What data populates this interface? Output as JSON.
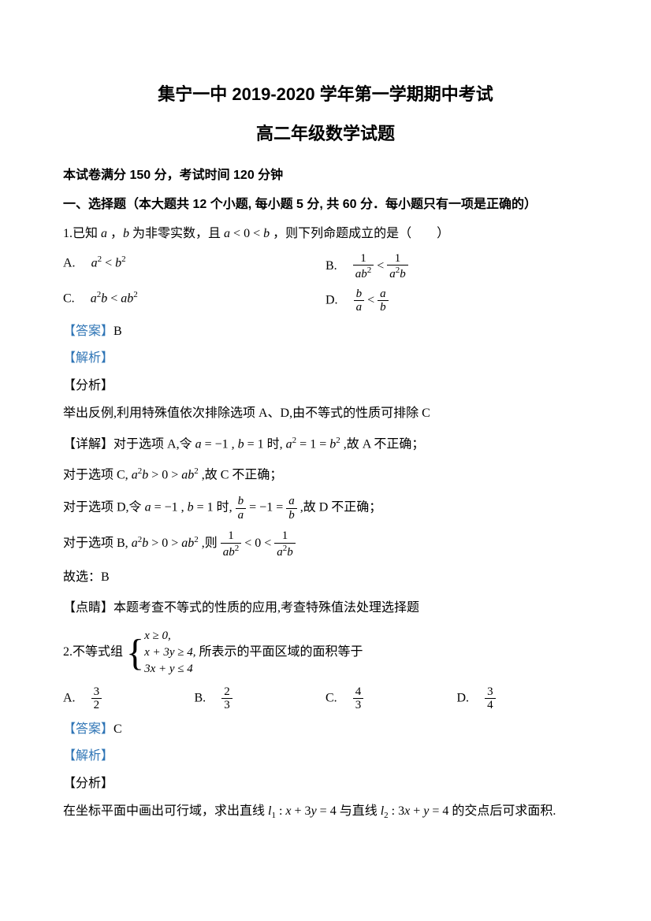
{
  "title_main": "集宁一中 2019-2020 学年第一学期期中考试",
  "title_sub": "高二年级数学试题",
  "exam_info": "本试卷满分 150 分，考试时间 120 分钟",
  "section1": "一、选择题（本大题共 12 个小题, 每小题 5 分, 共 60 分．每小题只有一项是正确的）",
  "q1": {
    "stem_prefix": "1.已知",
    "stem_mid": "为非零实数，且",
    "stem_suffix": "，则下列命题成立的是（　　）",
    "optA_prefix": "A.　",
    "optB_prefix": "B.　",
    "optC_prefix": "C.　",
    "optD_prefix": "D.　",
    "answer_label": "【答案】",
    "answer": "B",
    "analysis_label": "【解析】",
    "fenxi_label": "【分析】",
    "fenxi_text": "举出反例,利用特殊值依次排除选项 A、D,由不等式的性质可排除 C",
    "detail_label": "【详解】",
    "detailA_1": "对于选项 A,令",
    "detailA_2": "时,",
    "detailA_3": ",故 A 不正确；",
    "detailC_1": "对于选项 C,",
    "detailC_2": ",故 C 不正确；",
    "detailD_1": "对于选项 D,令",
    "detailD_2": "时,",
    "detailD_3": ",故 D 不正确；",
    "detailB_1": "对于选项 B,",
    "detailB_2": ",则",
    "conclude": "故选：B",
    "dianjing_label": "【点睛】",
    "dianjing_text": "本题考查不等式的性质的应用,考查特殊值法处理选择题"
  },
  "q2": {
    "stem_prefix": "2.不等式组",
    "stem_suffix": " 所表示的平面区域的面积等于",
    "sys1": "x ≥ 0,",
    "sys2": "x + 3y ≥ 4,",
    "sys3": "3x + y ≤ 4",
    "optA": "A.　",
    "optB": "B.　",
    "optC": "C.　",
    "optD": "D.　",
    "fracA_num": "3",
    "fracA_den": "2",
    "fracB_num": "2",
    "fracB_den": "3",
    "fracC_num": "4",
    "fracC_den": "3",
    "fracD_num": "3",
    "fracD_den": "4",
    "answer_label": "【答案】",
    "answer": "C",
    "analysis_label": "【解析】",
    "fenxi_label": "【分析】",
    "fenxi_text_1": "在坐标平面中画出可行域，求出直线",
    "fenxi_text_2": "与直线",
    "fenxi_text_3": "的交点后可求面积."
  },
  "colors": {
    "link_blue": "#2e74b5",
    "text_black": "#000000",
    "background": "#ffffff"
  }
}
